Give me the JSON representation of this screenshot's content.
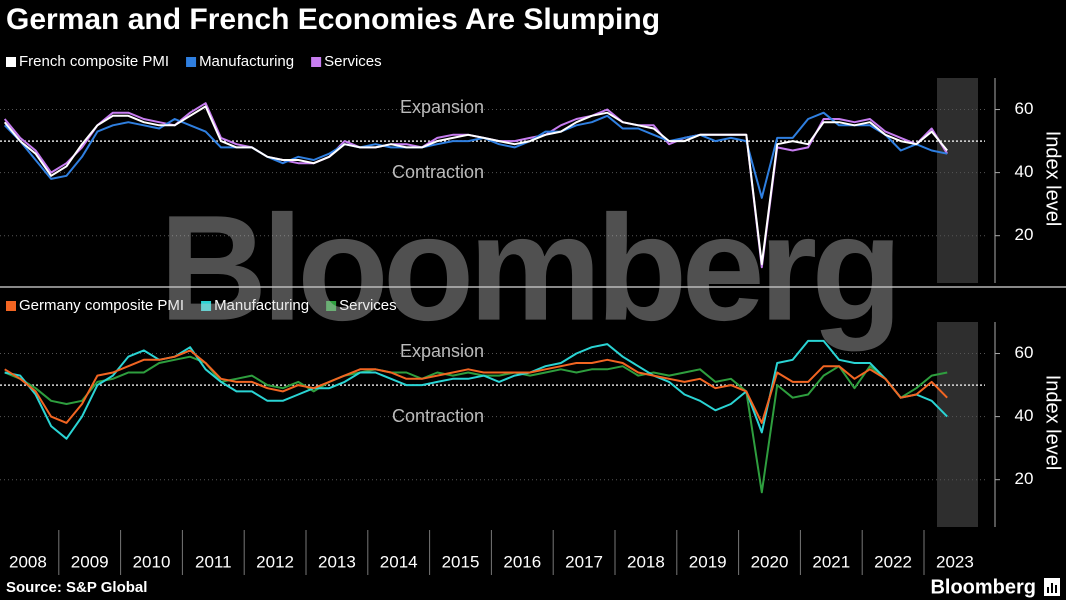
{
  "header": {
    "title": "German and French Economies Are Slumping"
  },
  "chart_data": [
    {
      "type": "line",
      "annotations": [
        "Expansion",
        "Contraction"
      ],
      "ylabel": "Index level",
      "ylim": [
        5,
        70
      ],
      "yticks": [
        20,
        40,
        60
      ],
      "reference_line": 50,
      "series": [
        {
          "name": "French composite PMI",
          "color": "#ffffff",
          "values": [
            56,
            50,
            46,
            39,
            42,
            49,
            55,
            58,
            58,
            56,
            55,
            55,
            58,
            61,
            50,
            48,
            48,
            45,
            44,
            44,
            43,
            45,
            49,
            48,
            48,
            49,
            48,
            48,
            50,
            51,
            52,
            51,
            50,
            49,
            50,
            52,
            53,
            56,
            58,
            59,
            56,
            55,
            54,
            50,
            50,
            52,
            52,
            52,
            52,
            11,
            49,
            50,
            49,
            56,
            56,
            55,
            56,
            52,
            50,
            49,
            53,
            47
          ]
        },
        {
          "name": "Manufacturing",
          "color": "#2f7fe0",
          "values": [
            55,
            50,
            44,
            38,
            39,
            45,
            53,
            55,
            56,
            55,
            54,
            57,
            55,
            53,
            48,
            48,
            48,
            45,
            43,
            45,
            44,
            46,
            49,
            48,
            49,
            48,
            48,
            48,
            49,
            50,
            50,
            51,
            49,
            48,
            50,
            53,
            53,
            55,
            56,
            58,
            54,
            54,
            52,
            50,
            51,
            52,
            50,
            51,
            50,
            32,
            51,
            51,
            57,
            59,
            55,
            55,
            55,
            52,
            47,
            49,
            47,
            46
          ]
        },
        {
          "name": "Services",
          "color": "#c77df0",
          "values": [
            57,
            51,
            47,
            40,
            43,
            48,
            55,
            59,
            59,
            57,
            56,
            55,
            59,
            62,
            51,
            49,
            48,
            45,
            44,
            43,
            43,
            45,
            50,
            48,
            48,
            49,
            49,
            48,
            51,
            52,
            52,
            51,
            50,
            50,
            51,
            52,
            55,
            57,
            58,
            60,
            56,
            55,
            55,
            49,
            51,
            52,
            52,
            52,
            52,
            10,
            48,
            47,
            48,
            57,
            57,
            56,
            57,
            53,
            51,
            49,
            54,
            46
          ]
        }
      ]
    },
    {
      "type": "line",
      "annotations": [
        "Expansion",
        "Contraction"
      ],
      "ylabel": "Index level",
      "ylim": [
        5,
        70
      ],
      "yticks": [
        20,
        40,
        60
      ],
      "reference_line": 50,
      "categories": [
        "2008",
        null,
        null,
        null,
        "2009",
        null,
        null,
        null,
        "2010",
        null,
        null,
        null,
        "2011",
        null,
        null,
        null,
        "2012",
        null,
        null,
        null,
        "2013",
        null,
        null,
        null,
        "2014",
        null,
        null,
        null,
        "2015",
        null,
        null,
        null,
        "2016",
        null,
        null,
        null,
        "2017",
        null,
        null,
        null,
        "2018",
        null,
        null,
        null,
        "2019",
        null,
        null,
        null,
        "2020",
        null,
        null,
        null,
        "2021",
        null,
        null,
        null,
        "2022",
        null,
        null,
        null,
        "2023",
        null
      ],
      "series": [
        {
          "name": "Germany composite PMI",
          "color": "#f26522",
          "values": [
            55,
            52,
            48,
            40,
            38,
            44,
            53,
            54,
            56,
            58,
            58,
            59,
            61,
            57,
            52,
            51,
            51,
            49,
            48,
            50,
            49,
            51,
            53,
            55,
            55,
            54,
            52,
            52,
            53,
            54,
            55,
            54,
            54,
            54,
            54,
            55,
            56,
            57,
            57,
            58,
            57,
            54,
            53,
            52,
            51,
            52,
            49,
            50,
            48,
            38,
            54,
            51,
            51,
            56,
            56,
            52,
            55,
            52,
            46,
            47,
            51,
            46
          ]
        },
        {
          "name": "Manufacturing",
          "color": "#2ad4d4",
          "values": [
            54,
            53,
            47,
            37,
            33,
            40,
            50,
            53,
            59,
            61,
            58,
            59,
            62,
            55,
            51,
            48,
            48,
            45,
            45,
            47,
            49,
            49,
            51,
            54,
            54,
            52,
            50,
            50,
            51,
            52,
            52,
            53,
            51,
            53,
            54,
            56,
            57,
            60,
            62,
            63,
            59,
            56,
            53,
            51,
            47,
            45,
            42,
            44,
            48,
            35,
            57,
            58,
            64,
            64,
            58,
            57,
            57,
            52,
            46,
            47,
            45,
            40
          ]
        },
        {
          "name": "Services",
          "color": "#2e9e3e",
          "values": [
            54,
            52,
            49,
            45,
            44,
            45,
            51,
            52,
            54,
            54,
            57,
            58,
            59,
            57,
            51,
            52,
            53,
            50,
            49,
            51,
            48,
            51,
            53,
            54,
            55,
            54,
            54,
            52,
            54,
            53,
            54,
            53,
            53,
            54,
            53,
            54,
            55,
            54,
            55,
            55,
            56,
            53,
            54,
            53,
            54,
            55,
            51,
            52,
            48,
            16,
            50,
            46,
            47,
            53,
            56,
            49,
            56,
            52,
            46,
            49,
            53,
            54
          ]
        }
      ]
    }
  ],
  "source": "Source: S&P Global",
  "logo": "Bloomberg",
  "watermark": "Bloomberg"
}
